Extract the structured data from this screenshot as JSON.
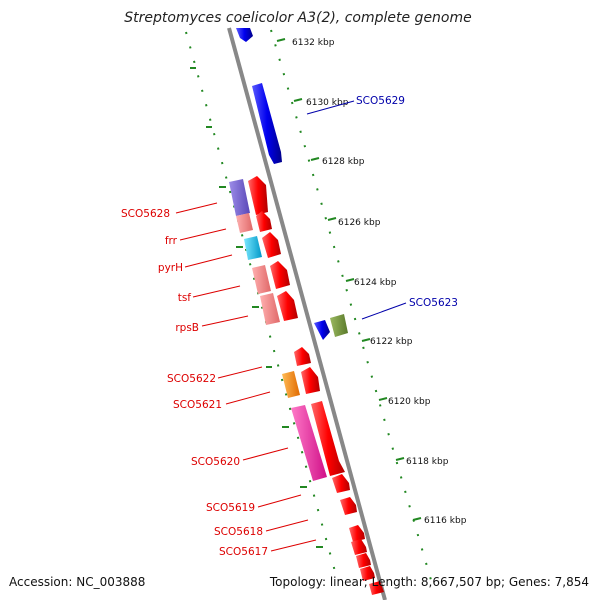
{
  "title": "Streptomyces coelicolor A3(2), complete genome",
  "accession": "Accession: NC_003888",
  "topology": "Topology: linear; Length: 8,667,507 bp; Genes: 7,854",
  "colors": {
    "forward_strand": "#ff0000",
    "reverse_strand": "#0000ee",
    "backbone": "#888888",
    "ruler_dots": "#228822",
    "forward_label": "#dd0000",
    "reverse_label": "#0000aa"
  },
  "ruler_ticks": [
    {
      "label": "6132 kbp"
    },
    {
      "label": "6130 kbp"
    },
    {
      "label": "6128 kbp"
    },
    {
      "label": "6126 kbp"
    },
    {
      "label": "6124 kbp"
    },
    {
      "label": "6122 kbp"
    },
    {
      "label": "6120 kbp"
    },
    {
      "label": "6118 kbp"
    },
    {
      "label": "6116 kbp"
    }
  ],
  "gene_labels_left": [
    {
      "name": "SCO5628"
    },
    {
      "name": "frr"
    },
    {
      "name": "pyrH"
    },
    {
      "name": "tsf"
    },
    {
      "name": "rpsB"
    },
    {
      "name": "SCO5622"
    },
    {
      "name": "SCO5621"
    },
    {
      "name": "SCO5620"
    },
    {
      "name": "SCO5619"
    },
    {
      "name": "SCO5618"
    },
    {
      "name": "SCO5617"
    }
  ],
  "gene_labels_right": [
    {
      "name": "SCO5629"
    },
    {
      "name": "SCO5623"
    }
  ]
}
